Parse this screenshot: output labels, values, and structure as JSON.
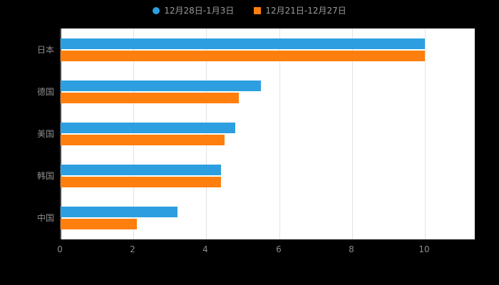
{
  "legend": {
    "items": [
      {
        "label": "12月28日-1月3日",
        "color": "#2D9FE0",
        "marker": "circle"
      },
      {
        "label": "12月21日-12月27日",
        "color": "#FF7F0E",
        "marker": "square"
      }
    ]
  },
  "chart_data": {
    "type": "bar",
    "orientation": "horizontal",
    "title": "",
    "categories": [
      "日本",
      "德国",
      "美国",
      "韩国",
      "中国"
    ],
    "series": [
      {
        "name": "12月28日-1月3日",
        "color": "#2D9FE0",
        "values": [
          10,
          5.5,
          4.8,
          4.4,
          3.2
        ]
      },
      {
        "name": "12月21日-12月27日",
        "color": "#FF7F0E",
        "values": [
          10,
          4.9,
          4.5,
          4.4,
          2.1
        ]
      }
    ],
    "xlim": [
      0,
      11.3
    ],
    "xticks": [
      0,
      2,
      4,
      6,
      8,
      10
    ],
    "xtick_labels": [
      "0",
      "2",
      "4",
      "6",
      "8",
      "10"
    ],
    "grid": true,
    "legend_position": "top",
    "plot_background": "#FFFFFF",
    "page_background": "#000000",
    "label_color": "#8C8C8C"
  }
}
